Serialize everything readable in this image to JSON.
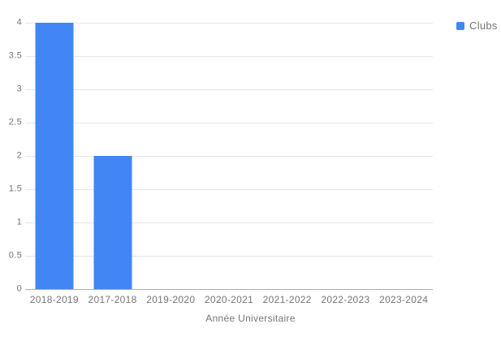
{
  "chart_data": {
    "type": "bar",
    "title": "",
    "xlabel": "Année Universitaire",
    "ylabel": "",
    "categories": [
      "2018-2019",
      "2017-2018",
      "2019-2020",
      "2020-2021",
      "2021-2022",
      "2022-2023",
      "2023-2024"
    ],
    "series": [
      {
        "name": "Clubs",
        "color": "#4285f4",
        "values": [
          4,
          2,
          0,
          0,
          0,
          0,
          0
        ]
      }
    ],
    "ylim": [
      0,
      4
    ],
    "y_ticks": [
      0,
      0.5,
      1,
      1.5,
      2,
      2.5,
      3,
      3.5,
      4
    ],
    "y_tick_labels": [
      "0",
      "0.5",
      "1",
      "1.5",
      "2",
      "2.5",
      "3",
      "3.5",
      "4"
    ],
    "grid": true,
    "legend_position": "top-right",
    "colors": {
      "background": "#ffffff",
      "gridline": "#e6e6e6",
      "baseline": "#b0b0b0",
      "axis_text": "#757575",
      "bar": "#4285f4"
    }
  }
}
